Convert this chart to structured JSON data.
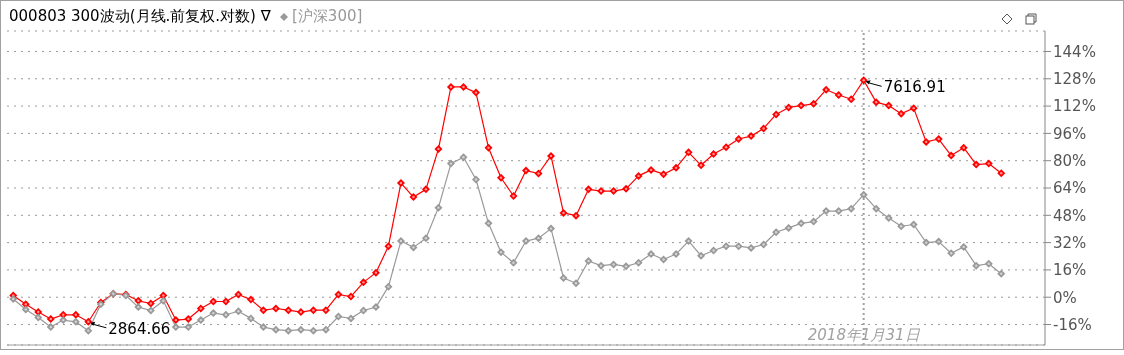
{
  "chart_data": {
    "type": "line",
    "title": "000803 300波动(月线.前复权.对数) ∇",
    "categories": [
      null,
      null,
      null,
      null,
      null,
      null,
      null,
      null,
      null,
      null,
      null,
      null,
      null,
      null,
      null,
      null,
      null,
      null,
      null,
      null,
      null,
      null,
      null,
      null,
      null,
      null,
      null,
      null,
      null,
      null,
      null,
      null,
      null,
      null,
      null,
      null,
      null,
      null,
      null,
      null,
      null,
      null,
      null,
      null,
      null,
      null,
      null,
      null,
      null,
      null,
      null,
      null,
      null,
      null,
      null,
      null,
      null,
      null,
      null,
      null,
      null,
      null,
      null,
      null,
      null,
      null,
      null,
      null,
      "2018年1月31日",
      null,
      null,
      null,
      null,
      null,
      null,
      null,
      null,
      null,
      null,
      null
    ],
    "series": [
      {
        "color": "#ff0000",
        "values": [
          1.0,
          -4.1,
          -8.7,
          -12.8,
          -10.3,
          -10.3,
          -14.4,
          -3.1,
          2.1,
          1.6,
          -2.1,
          -3.7,
          1.0,
          -13.4,
          -12.8,
          -6.6,
          -2.5,
          -2.5,
          1.6,
          -1.4,
          -7.6,
          -6.6,
          -7.6,
          -8.7,
          -7.6,
          -7.6,
          1.6,
          0.4,
          8.7,
          14.4,
          29.9,
          66.9,
          58.7,
          63.2,
          86.9,
          123.2,
          123.2,
          119.9,
          87.6,
          70.0,
          59.3,
          74.2,
          72.5,
          82.8,
          49.4,
          47.8,
          63.2,
          62.2,
          62.2,
          63.5,
          71.1,
          74.6,
          72.1,
          75.8,
          84.9,
          77.3,
          83.9,
          87.9,
          92.7,
          94.4,
          98.9,
          107.1,
          111.2,
          112.3,
          113.3,
          121.6,
          118.5,
          116.0,
          127.1,
          114.3,
          112.3,
          107.5,
          110.8,
          91.0,
          92.7,
          83.0,
          87.6,
          77.7,
          78.3,
          72.7
        ]
      },
      {
        "name": "[沪深300]",
        "color": "#999999",
        "values": [
          -1.0,
          -7.2,
          -11.9,
          -17.5,
          -13.4,
          -14.4,
          -19.6,
          -4.1,
          2.1,
          1.0,
          -5.8,
          -7.8,
          -2.1,
          -17.5,
          -17.5,
          -13.4,
          -9.3,
          -10.3,
          -8.2,
          -12.4,
          -17.5,
          -19.0,
          -19.6,
          -19.0,
          -19.6,
          -19.0,
          -11.3,
          -12.4,
          -7.8,
          -5.8,
          6.2,
          32.9,
          29.2,
          34.6,
          52.5,
          78.3,
          82.0,
          69.0,
          43.3,
          26.4,
          20.2,
          32.9,
          34.6,
          40.2,
          11.3,
          8.2,
          21.2,
          18.5,
          19.2,
          18.1,
          20.2,
          25.3,
          22.1,
          25.3,
          32.9,
          24.3,
          27.4,
          29.9,
          29.9,
          28.9,
          30.9,
          38.1,
          40.6,
          43.3,
          44.3,
          50.5,
          50.5,
          51.9,
          60.1,
          51.9,
          46.4,
          41.6,
          42.6,
          32.0,
          32.6,
          25.8,
          29.5,
          18.5,
          19.6,
          13.8
        ]
      }
    ],
    "ylim": [
      -28,
      156
    ],
    "yticks": [
      {
        "value": -16,
        "label": "-16%"
      },
      {
        "value": 0,
        "label": "0%"
      },
      {
        "value": 16,
        "label": "16%"
      },
      {
        "value": 32,
        "label": "32%"
      },
      {
        "value": 48,
        "label": "48%"
      },
      {
        "value": 64,
        "label": "64%"
      },
      {
        "value": 80,
        "label": "80%"
      },
      {
        "value": 96,
        "label": "96%"
      },
      {
        "value": 112,
        "label": "112%"
      },
      {
        "value": 128,
        "label": "128%"
      },
      {
        "value": 144,
        "label": "144%"
      }
    ],
    "grid": "y",
    "legend": "top",
    "marker": "diamond",
    "line_style": "solid",
    "ref_lines": [
      {
        "axis": "x",
        "value": "2018年1月31日",
        "color": "#a0a0a0",
        "line_style": "dotted"
      }
    ],
    "annotations": [
      "2864.66",
      "7616.91"
    ]
  }
}
